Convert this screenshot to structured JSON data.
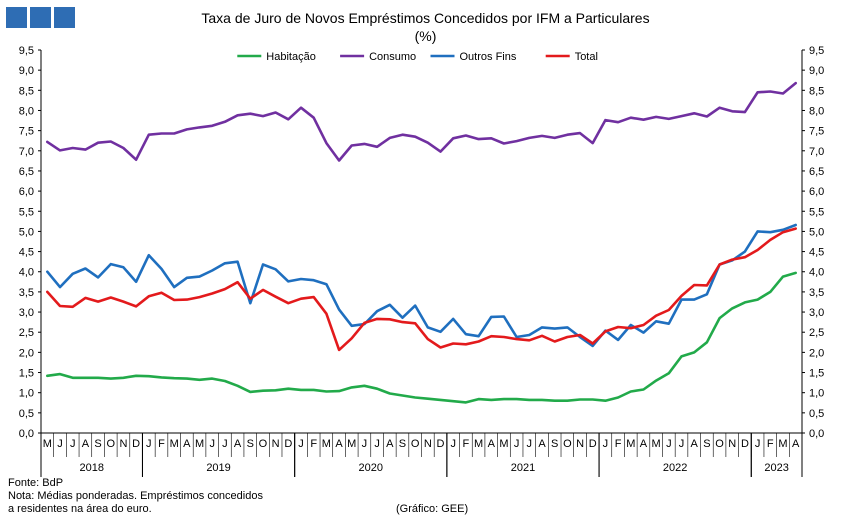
{
  "header": {
    "title_line1": "Taxa de Juro de Novos Empréstimos Concedidos por IFM a Particulares",
    "title_line2": "(%)"
  },
  "footer": {
    "source": "Fonte: BdP",
    "note_line1": "Nota: Médias ponderadas. Empréstimos concedidos",
    "note_line2": "a residentes na área do euro.",
    "credit": "(Gráfico: GEE)"
  },
  "colors": {
    "logo": "#2e6db4",
    "habitacao": "#22aa4a",
    "consumo": "#7030a0",
    "outros": "#1f6fbf",
    "total": "#e31a1c"
  },
  "chart_data": {
    "type": "line",
    "title": "Taxa de Juro de Novos Empréstimos Concedidos por IFM a Particulares (%)",
    "ylim": [
      0,
      9.5
    ],
    "ytick_step": 0.5,
    "y_tick_labels": [
      "0,0",
      "0,5",
      "1,0",
      "1,5",
      "2,0",
      "2,5",
      "3,0",
      "3,5",
      "4,0",
      "4,5",
      "5,0",
      "5,5",
      "6,0",
      "6,5",
      "7,0",
      "7,5",
      "8,0",
      "8,5",
      "9,0",
      "9,5"
    ],
    "legend_position": "top",
    "grid": false,
    "secondary_y_axis_mirrored": true,
    "x_month_labels": [
      "M",
      "J",
      "J",
      "A",
      "S",
      "O",
      "N",
      "D",
      "J",
      "F",
      "M",
      "A",
      "M",
      "J",
      "J",
      "A",
      "S",
      "O",
      "N",
      "D",
      "J",
      "F",
      "M",
      "A",
      "M",
      "J",
      "J",
      "A",
      "S",
      "O",
      "N",
      "D",
      "J",
      "F",
      "M",
      "A",
      "M",
      "J",
      "J",
      "A",
      "S",
      "O",
      "N",
      "D",
      "J",
      "F",
      "M",
      "A",
      "M",
      "J",
      "J",
      "A",
      "S",
      "O",
      "N",
      "D",
      "J",
      "F",
      "M",
      "A"
    ],
    "x": [
      "2018-05",
      "2018-06",
      "2018-07",
      "2018-08",
      "2018-09",
      "2018-10",
      "2018-11",
      "2018-12",
      "2019-01",
      "2019-02",
      "2019-03",
      "2019-04",
      "2019-05",
      "2019-06",
      "2019-07",
      "2019-08",
      "2019-09",
      "2019-10",
      "2019-11",
      "2019-12",
      "2020-01",
      "2020-02",
      "2020-03",
      "2020-04",
      "2020-05",
      "2020-06",
      "2020-07",
      "2020-08",
      "2020-09",
      "2020-10",
      "2020-11",
      "2020-12",
      "2021-01",
      "2021-02",
      "2021-03",
      "2021-04",
      "2021-05",
      "2021-06",
      "2021-07",
      "2021-08",
      "2021-09",
      "2021-10",
      "2021-11",
      "2021-12",
      "2022-01",
      "2022-02",
      "2022-03",
      "2022-04",
      "2022-05",
      "2022-06",
      "2022-07",
      "2022-08",
      "2022-09",
      "2022-10",
      "2022-11",
      "2022-12",
      "2023-01",
      "2023-02",
      "2023-03",
      "2023-04"
    ],
    "years": [
      {
        "label": "2018",
        "start": 0,
        "count": 8
      },
      {
        "label": "2019",
        "start": 8,
        "count": 12
      },
      {
        "label": "2020",
        "start": 20,
        "count": 12
      },
      {
        "label": "2021",
        "start": 32,
        "count": 12
      },
      {
        "label": "2022",
        "start": 44,
        "count": 12
      },
      {
        "label": "2023",
        "start": 56,
        "count": 4
      }
    ],
    "series": [
      {
        "name": "Habitação",
        "color": "#22aa4a",
        "values": [
          1.42,
          1.46,
          1.37,
          1.37,
          1.37,
          1.35,
          1.37,
          1.42,
          1.41,
          1.38,
          1.36,
          1.35,
          1.32,
          1.35,
          1.29,
          1.17,
          1.02,
          1.05,
          1.06,
          1.1,
          1.07,
          1.07,
          1.03,
          1.04,
          1.13,
          1.17,
          1.1,
          0.98,
          0.93,
          0.88,
          0.85,
          0.82,
          0.79,
          0.76,
          0.84,
          0.82,
          0.84,
          0.84,
          0.82,
          0.82,
          0.8,
          0.8,
          0.83,
          0.83,
          0.8,
          0.88,
          1.03,
          1.08,
          1.3,
          1.48,
          1.9,
          2.0,
          2.25,
          2.85,
          3.09,
          3.24,
          3.31,
          3.5,
          3.88,
          3.97
        ]
      },
      {
        "name": "Consumo",
        "color": "#7030a0",
        "values": [
          7.22,
          7.01,
          7.07,
          7.03,
          7.2,
          7.23,
          7.07,
          6.78,
          7.4,
          7.43,
          7.43,
          7.53,
          7.58,
          7.62,
          7.72,
          7.88,
          7.92,
          7.86,
          7.95,
          7.78,
          8.07,
          7.82,
          7.19,
          6.76,
          7.13,
          7.17,
          7.1,
          7.32,
          7.4,
          7.35,
          7.2,
          6.98,
          7.31,
          7.38,
          7.29,
          7.31,
          7.18,
          7.24,
          7.32,
          7.37,
          7.32,
          7.4,
          7.44,
          7.19,
          7.76,
          7.71,
          7.82,
          7.77,
          7.84,
          7.79,
          7.86,
          7.93,
          7.85,
          8.07,
          7.98,
          7.96,
          8.45,
          8.47,
          8.42,
          8.68
        ]
      },
      {
        "name": "Outros Fins",
        "color": "#1f6fbf",
        "values": [
          4.0,
          3.62,
          3.95,
          4.08,
          3.86,
          4.19,
          4.11,
          3.75,
          4.41,
          4.07,
          3.62,
          3.85,
          3.88,
          4.03,
          4.21,
          4.25,
          3.22,
          4.18,
          4.06,
          3.76,
          3.82,
          3.79,
          3.69,
          3.06,
          2.66,
          2.7,
          3.02,
          3.18,
          2.86,
          3.16,
          2.62,
          2.51,
          2.83,
          2.45,
          2.4,
          2.88,
          2.89,
          2.38,
          2.43,
          2.62,
          2.59,
          2.62,
          2.38,
          2.16,
          2.54,
          2.31,
          2.68,
          2.49,
          2.77,
          2.71,
          3.31,
          3.31,
          3.44,
          4.18,
          4.28,
          4.5,
          5.0,
          4.98,
          5.04,
          5.16
        ]
      },
      {
        "name": "Total",
        "color": "#e31a1c",
        "values": [
          3.5,
          3.15,
          3.13,
          3.35,
          3.26,
          3.36,
          3.26,
          3.14,
          3.39,
          3.48,
          3.3,
          3.31,
          3.37,
          3.46,
          3.57,
          3.74,
          3.33,
          3.55,
          3.38,
          3.22,
          3.33,
          3.37,
          2.96,
          2.06,
          2.35,
          2.73,
          2.83,
          2.82,
          2.75,
          2.72,
          2.33,
          2.12,
          2.22,
          2.2,
          2.27,
          2.4,
          2.38,
          2.33,
          2.3,
          2.41,
          2.27,
          2.38,
          2.43,
          2.22,
          2.52,
          2.63,
          2.6,
          2.68,
          2.91,
          3.05,
          3.4,
          3.67,
          3.66,
          4.18,
          4.3,
          4.36,
          4.54,
          4.79,
          4.98,
          5.07
        ]
      }
    ]
  }
}
